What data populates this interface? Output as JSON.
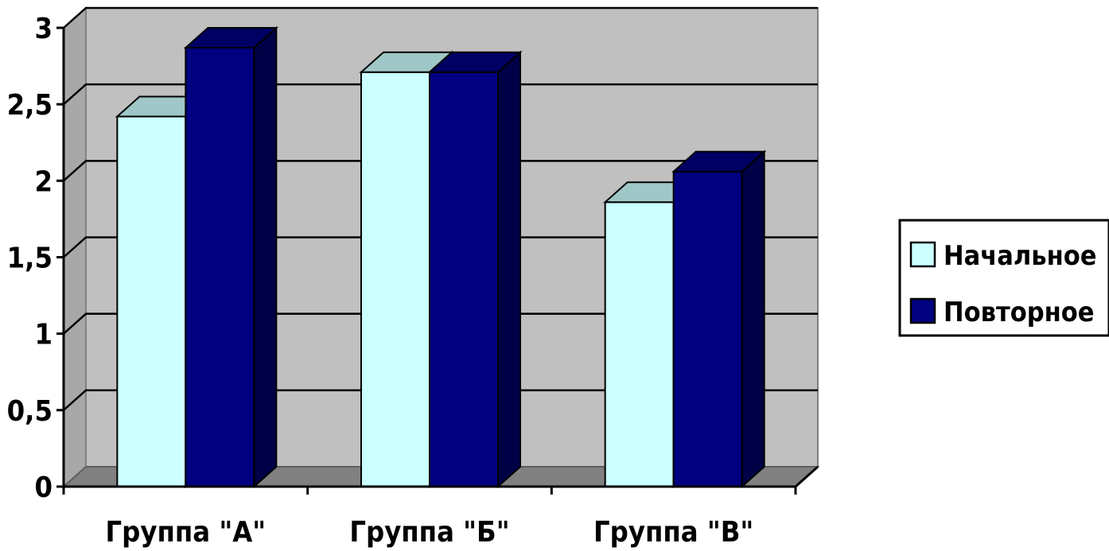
{
  "chart_data": {
    "type": "bar",
    "style": "3d-clustered-column",
    "categories": [
      "Группа \"А\"",
      "Группа \"Б\"",
      "Группа \"В\""
    ],
    "series": [
      {
        "name": "Начальное",
        "values": [
          2.42,
          2.71,
          1.86
        ],
        "color": "#ccffff"
      },
      {
        "name": "Повторное",
        "values": [
          2.87,
          2.71,
          2.06
        ],
        "color": "#000080"
      }
    ],
    "ylim": [
      0,
      3
    ],
    "yticks": [
      "0",
      "0,5",
      "1",
      "1,5",
      "2",
      "2,5",
      "3"
    ],
    "ytick_values": [
      0,
      0.5,
      1,
      1.5,
      2,
      2.5,
      3
    ],
    "grid": true,
    "legend_position": "right",
    "wall_color": "#c0c0c0",
    "floor_color": "#808080"
  }
}
